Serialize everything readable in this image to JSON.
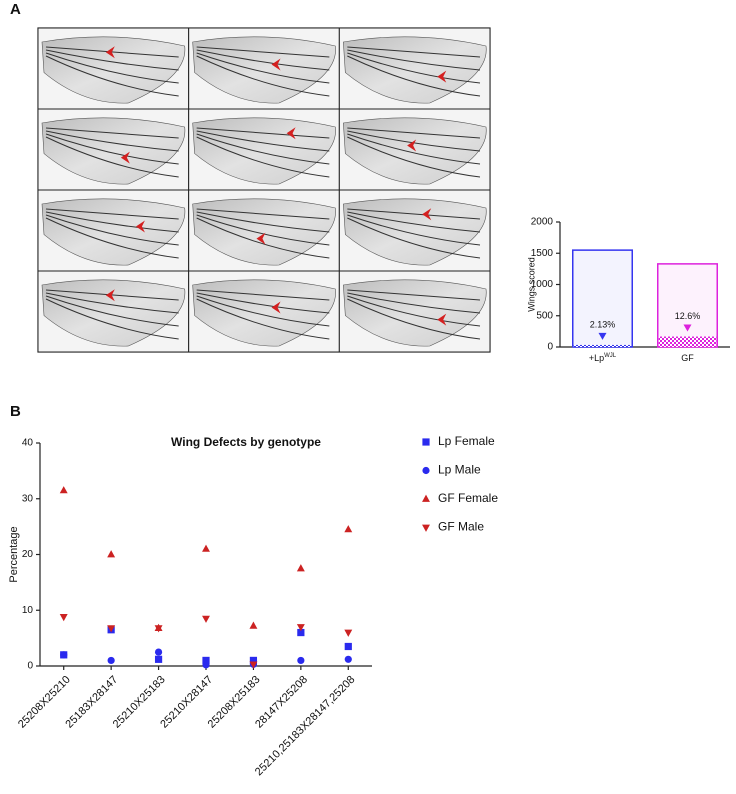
{
  "panel_labels": [
    "A",
    "B"
  ],
  "chart_data": [
    {
      "type": "bar",
      "ylabel": "Wings scored",
      "categories": [
        "+Lp",
        "GF"
      ],
      "category_superscripts": [
        "WJL",
        null
      ],
      "values": [
        1550,
        1330
      ],
      "colors": [
        "#3535f0",
        "#dd22dd"
      ],
      "defects": {
        "values": [
          2.13,
          12.6
        ],
        "value_labels": [
          "2.13%",
          "12.6%"
        ]
      },
      "ylim": [
        0,
        2000
      ],
      "yticks": [
        0,
        500,
        1000,
        1500,
        2000
      ]
    },
    {
      "type": "scatter",
      "title": "Wing Defects by genotype",
      "ylabel": "Percentage",
      "categories": [
        "25208X25210",
        "25183X28147",
        "25210X25183",
        "25210X28147",
        "25208X25183",
        "28147X25208",
        "25210,25183X28147,25208"
      ],
      "series": [
        {
          "name": "Lp Female",
          "color": "#2a2aee",
          "marker": "square",
          "values": [
            2,
            6.5,
            1.2,
            1,
            1,
            6,
            3.5
          ]
        },
        {
          "name": "Lp Male",
          "color": "#2a2aee",
          "marker": "circle",
          "values": [
            2,
            1,
            2.5,
            0.2,
            0.3,
            1,
            1.2
          ]
        },
        {
          "name": "GF Female",
          "color": "#cc2222",
          "marker": "triangle-up",
          "values": [
            31.5,
            20,
            6.8,
            21,
            7.2,
            17.5,
            24.5
          ]
        },
        {
          "name": "GF Male",
          "color": "#cc2222",
          "marker": "triangle-down",
          "values": [
            8.8,
            6.8,
            6.8,
            8.5,
            0.3,
            7,
            6
          ]
        }
      ],
      "ylim": [
        0,
        40
      ],
      "yticks": [
        0,
        10,
        20,
        30,
        40
      ],
      "legend": "right"
    }
  ]
}
